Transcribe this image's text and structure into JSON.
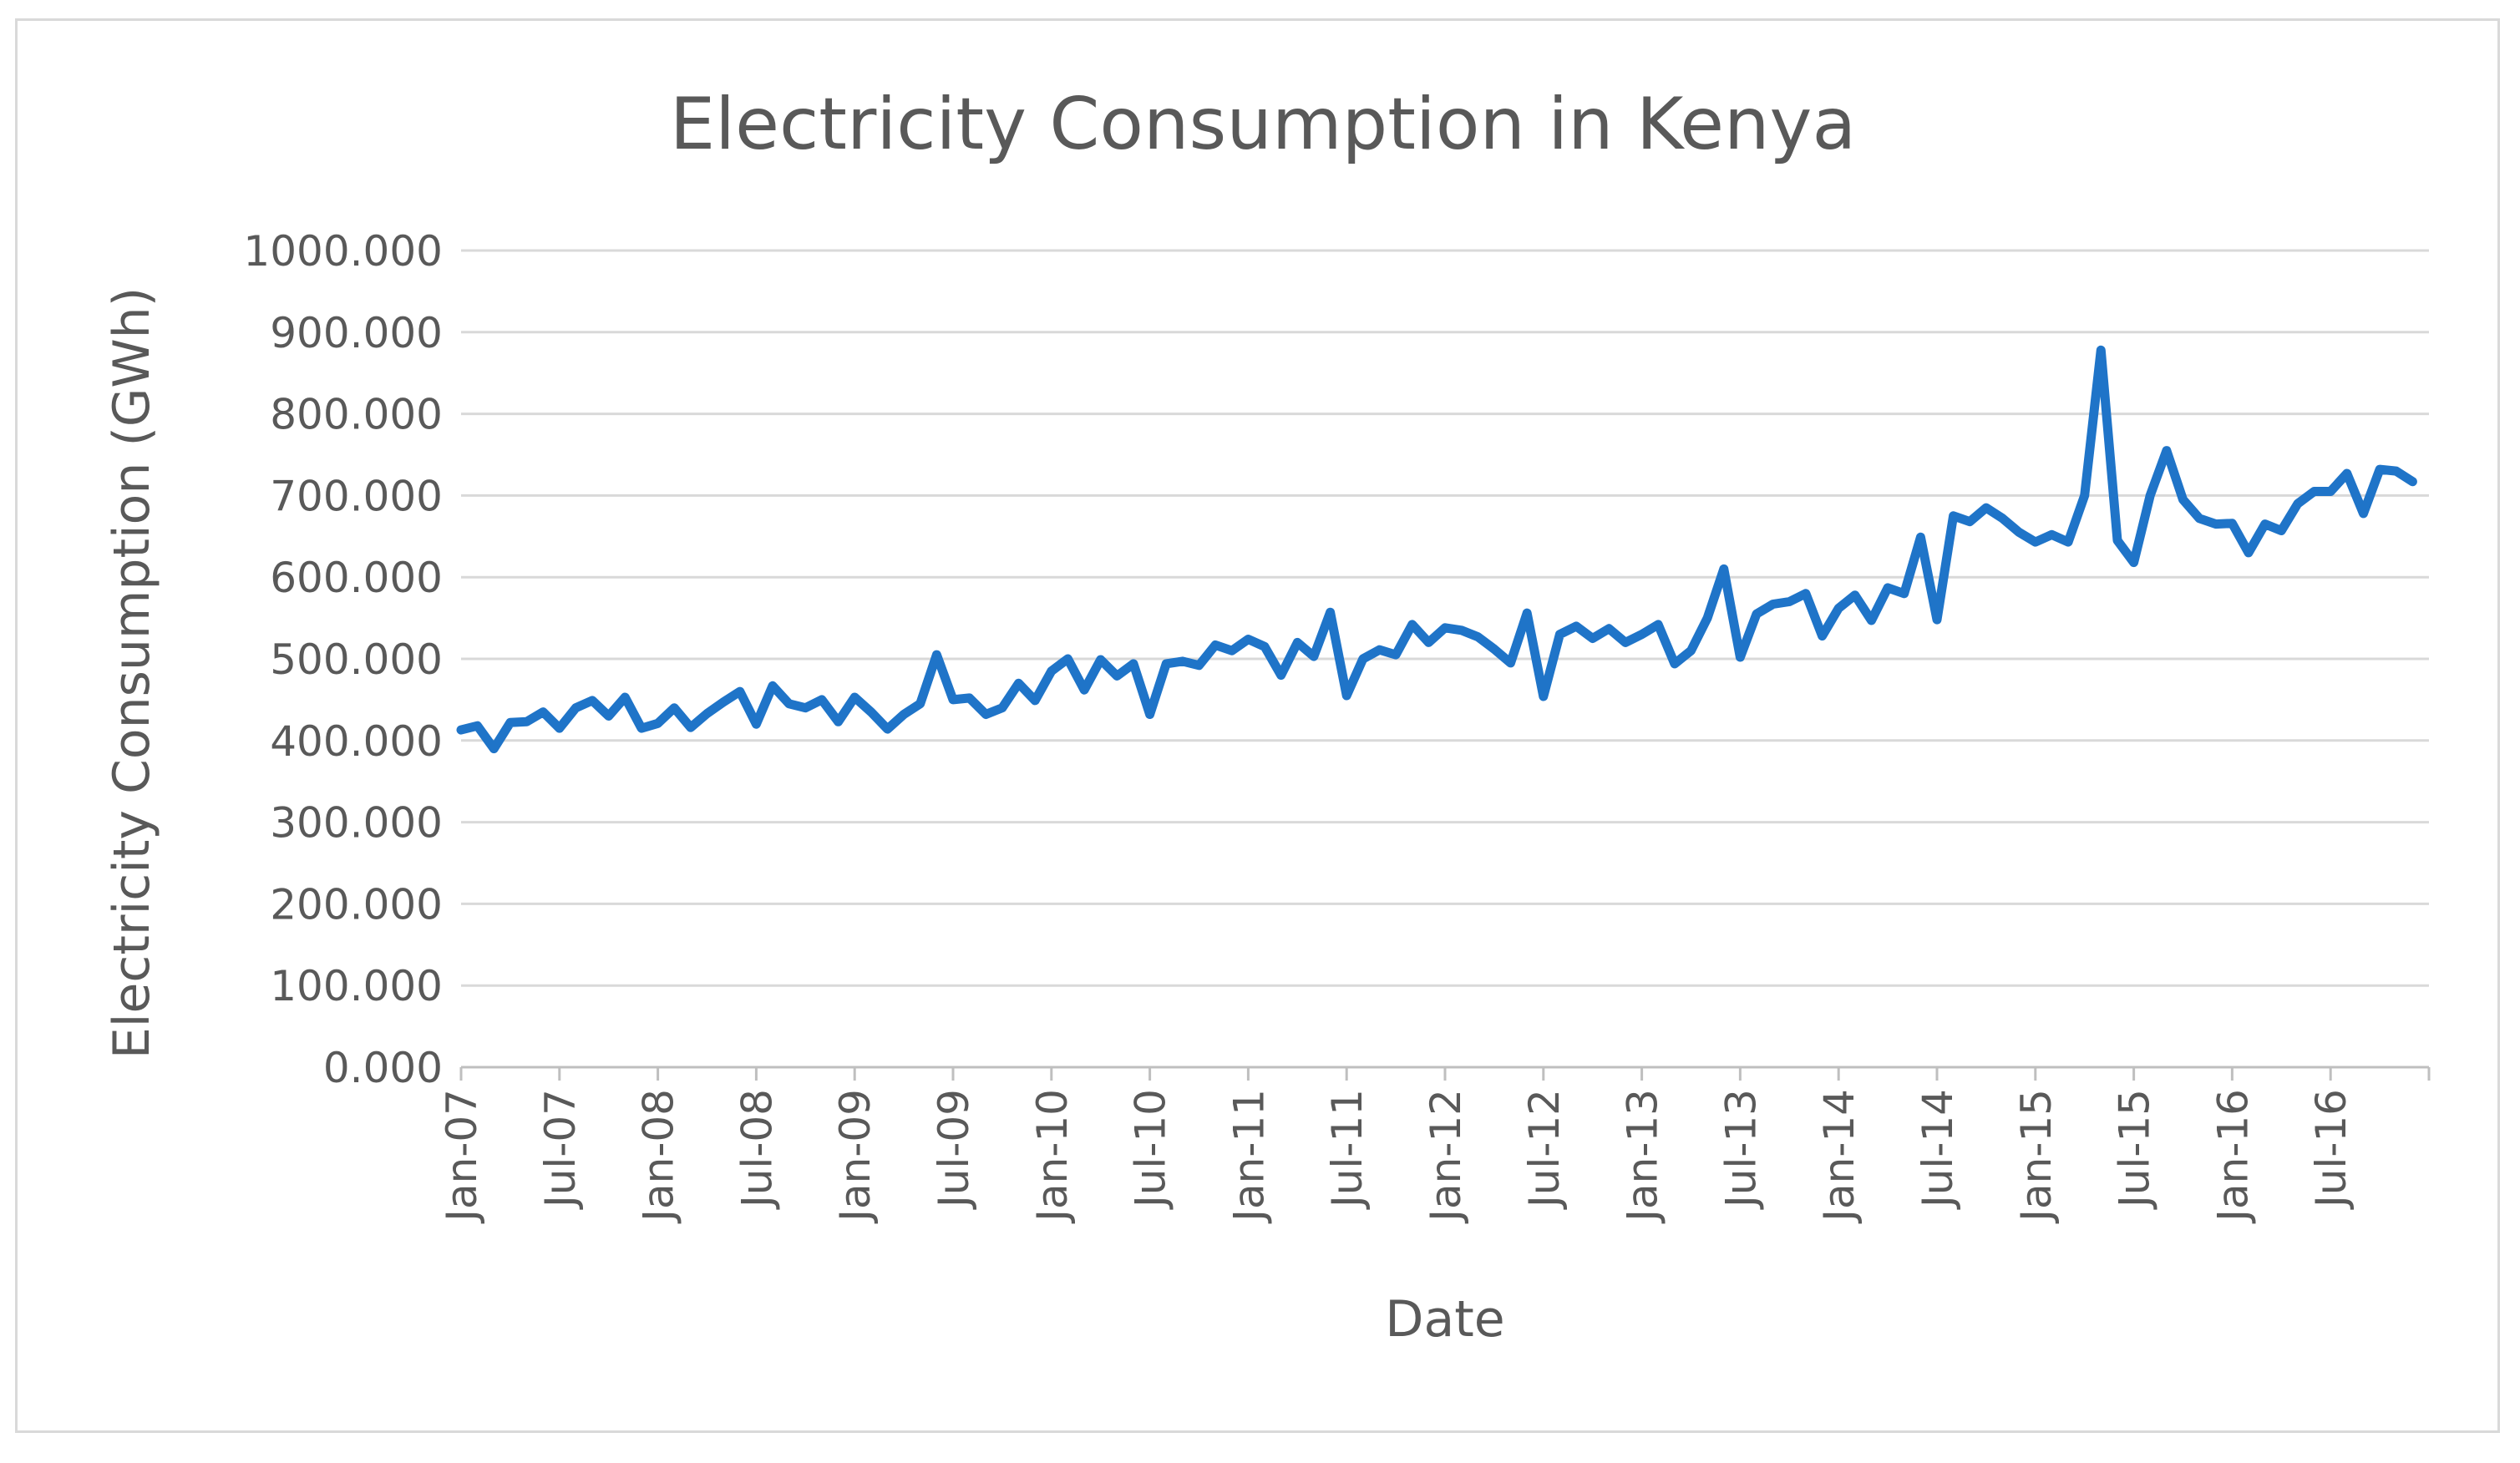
{
  "chart_data": {
    "type": "line",
    "title": "Electricity Consumption in Kenya",
    "xlabel": "Date",
    "ylabel": "Electricity Consumption (GWh)",
    "ylim": [
      0,
      1000
    ],
    "y_ticks": [
      0,
      100,
      200,
      300,
      400,
      500,
      600,
      700,
      800,
      900,
      1000
    ],
    "y_tick_labels": [
      "0.000",
      "100.000",
      "200.000",
      "300.000",
      "400.000",
      "500.000",
      "600.000",
      "700.000",
      "800.000",
      "900.000",
      "1000.000"
    ],
    "x_tick_labels": [
      "Jan-07",
      "Jul-07",
      "Jan-08",
      "Jul-08",
      "Jan-09",
      "Jul-09",
      "Jan-10",
      "Jul-10",
      "Jan-11",
      "Jul-11",
      "Jan-12",
      "Jul-12",
      "Jan-13",
      "Jul-13",
      "Jan-14",
      "Jul-14",
      "Jan-15",
      "Jul-15",
      "Jan-16",
      "Jul-16"
    ],
    "x_tick_month_index": [
      0,
      6,
      12,
      18,
      24,
      30,
      36,
      42,
      48,
      54,
      60,
      66,
      72,
      78,
      84,
      90,
      96,
      102,
      108,
      114
    ],
    "x_range_months": [
      0,
      120
    ],
    "grid": true,
    "series": [
      {
        "name": "Electricity Consumption (GWh)",
        "color": "#1f74c8",
        "start": "Jan-07",
        "values": [
          413,
          418,
          390,
          422,
          423,
          435,
          415,
          440,
          449,
          430,
          453,
          415,
          421,
          440,
          416,
          433,
          447,
          460,
          420,
          467,
          445,
          440,
          450,
          423,
          453,
          435,
          414,
          432,
          445,
          505,
          450,
          452,
          432,
          440,
          470,
          449,
          485,
          500,
          462,
          499,
          479,
          494,
          432,
          494,
          497,
          492,
          517,
          510,
          524,
          515,
          480,
          520,
          503,
          557,
          455,
          500,
          511,
          505,
          542,
          520,
          538,
          535,
          527,
          512,
          495,
          556,
          454,
          530,
          540,
          525,
          537,
          520,
          530,
          542,
          494,
          510,
          550,
          610,
          502,
          555,
          567,
          570,
          580,
          528,
          562,
          578,
          547,
          587,
          580,
          649,
          548,
          675,
          668,
          685,
          672,
          655,
          643,
          652,
          643,
          700,
          878,
          645,
          618,
          700,
          755,
          695,
          672,
          665,
          666,
          630,
          665,
          657,
          690,
          705,
          705,
          727,
          678,
          732,
          730,
          717
        ]
      }
    ]
  }
}
